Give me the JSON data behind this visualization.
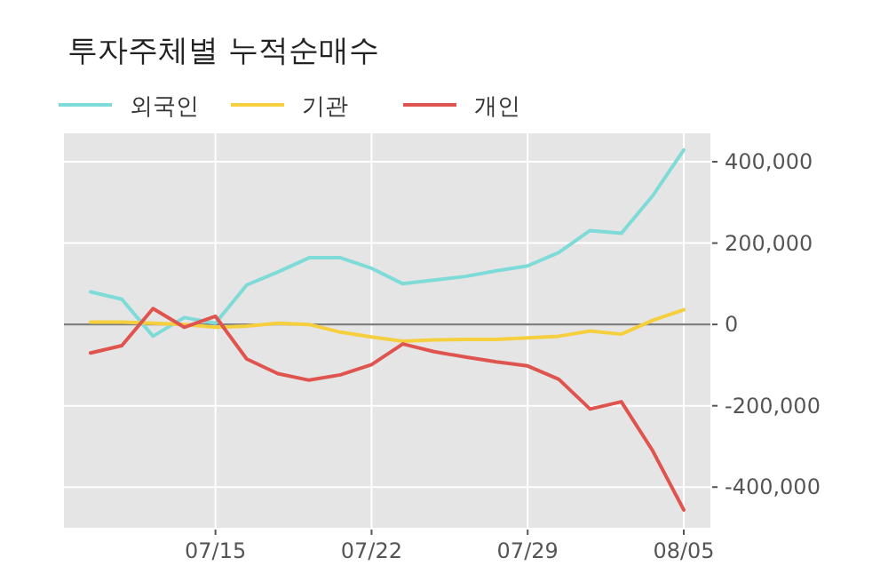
{
  "chart_data": {
    "type": "line",
    "title": "투자주체별 누적순매수",
    "categories": [
      null,
      null,
      null,
      null,
      "07/15",
      null,
      null,
      null,
      null,
      "07/22",
      null,
      null,
      null,
      null,
      "07/29",
      null,
      null,
      null,
      null,
      "08/05"
    ],
    "series": [
      {
        "name": "외국인",
        "color": "#7fdbd8",
        "values": [
          80000,
          62000,
          -29000,
          17000,
          3000,
          97000,
          129000,
          164000,
          164000,
          138000,
          100000,
          109000,
          118000,
          132000,
          144000,
          177000,
          231000,
          224000,
          316000,
          429000
        ]
      },
      {
        "name": "기관",
        "color": "#f6cf3f",
        "values": [
          6000,
          6000,
          3000,
          0,
          -7000,
          -4000,
          3000,
          0,
          -19000,
          -31000,
          -41000,
          -38000,
          -37000,
          -37000,
          -33000,
          -29000,
          -16000,
          -24000,
          10000,
          36000
        ]
      },
      {
        "name": "개인",
        "color": "#e0544f",
        "values": [
          -70000,
          -52000,
          39000,
          -7000,
          20000,
          -85000,
          -121000,
          -137000,
          -124000,
          -99000,
          -48000,
          -67000,
          -80000,
          -92000,
          -102000,
          -135000,
          -208000,
          -190000,
          -310000,
          -456000
        ]
      }
    ],
    "ylim": [
      -500000,
      470000
    ],
    "yticks": [
      {
        "value": -400000,
        "label": "-400,000"
      },
      {
        "value": -200000,
        "label": "-200,000"
      },
      0,
      {
        "value": 200000,
        "label": "200,000"
      },
      {
        "value": 400000,
        "label": "400,000"
      }
    ],
    "ref_lines": [
      {
        "axis": "y",
        "value": 0,
        "color": "#808080"
      }
    ],
    "grid": true,
    "legend": "top",
    "marker": "none",
    "line_style": "solid"
  }
}
